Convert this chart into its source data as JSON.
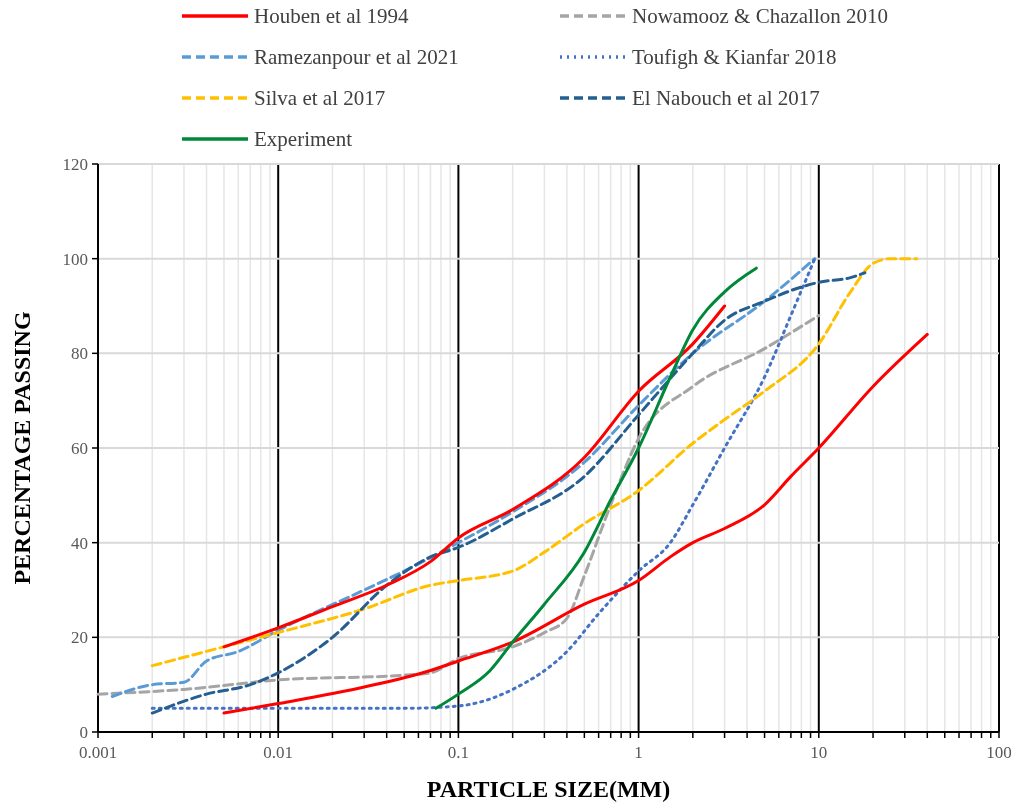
{
  "chart_data": {
    "type": "line",
    "xlabel": "PARTICLE SIZE(MM)",
    "ylabel": "PERCENTAGE PASSING",
    "log": "x",
    "grid": true,
    "legend": "top",
    "marker": "none",
    "xlim": [
      0.001,
      100
    ],
    "ylim": [
      0,
      120
    ],
    "xticks": [
      0.001,
      {
        "value": 0.002,
        "label": null
      },
      {
        "value": 0.003,
        "label": null
      },
      {
        "value": 0.004,
        "label": null
      },
      {
        "value": 0.005,
        "label": null
      },
      {
        "value": 0.006,
        "label": null
      },
      {
        "value": 0.007,
        "label": null
      },
      {
        "value": 0.008,
        "label": null
      },
      {
        "value": 0.009,
        "label": null
      },
      0.01,
      {
        "value": 0.02,
        "label": null
      },
      {
        "value": 0.03,
        "label": null
      },
      {
        "value": 0.04,
        "label": null
      },
      {
        "value": 0.05,
        "label": null
      },
      {
        "value": 0.06,
        "label": null
      },
      {
        "value": 0.07,
        "label": null
      },
      {
        "value": 0.08,
        "label": null
      },
      {
        "value": 0.09,
        "label": null
      },
      0.1,
      {
        "value": 0.2,
        "label": null
      },
      {
        "value": 0.3,
        "label": null
      },
      {
        "value": 0.4,
        "label": null
      },
      {
        "value": 0.5,
        "label": null
      },
      {
        "value": 0.6,
        "label": null
      },
      {
        "value": 0.7,
        "label": null
      },
      {
        "value": 0.8,
        "label": null
      },
      {
        "value": 0.9,
        "label": null
      },
      1,
      {
        "value": 2,
        "label": null
      },
      {
        "value": 3,
        "label": null
      },
      {
        "value": 4,
        "label": null
      },
      {
        "value": 5,
        "label": null
      },
      {
        "value": 6,
        "label": null
      },
      {
        "value": 7,
        "label": null
      },
      {
        "value": 8,
        "label": null
      },
      {
        "value": 9,
        "label": null
      },
      10,
      {
        "value": 20,
        "label": null
      },
      {
        "value": 30,
        "label": null
      },
      {
        "value": 40,
        "label": null
      },
      {
        "value": 50,
        "label": null
      },
      {
        "value": 60,
        "label": null
      },
      {
        "value": 70,
        "label": null
      },
      {
        "value": 80,
        "label": null
      },
      {
        "value": 90,
        "label": null
      },
      100
    ],
    "yticks": [
      0,
      20,
      40,
      60,
      80,
      100,
      120
    ],
    "series": [
      {
        "name": "Houben et al 1994",
        "color": "#ff0000",
        "line_style": "solid",
        "x": [
          0.005,
          0.01,
          0.03,
          0.07,
          0.1,
          0.2,
          0.5,
          1,
          1.5,
          2,
          3,
          5,
          7,
          10,
          20,
          40
        ],
        "values": [
          4,
          6,
          9.5,
          13,
          15,
          19,
          27,
          32,
          37,
          40,
          43,
          48,
          54,
          60,
          73,
          84
        ]
      },
      {
        "color": "#ff0000",
        "line_style": "solid",
        "x": [
          0.005,
          0.01,
          0.02,
          0.04,
          0.07,
          0.1,
          0.2,
          0.5,
          1,
          2,
          3
        ],
        "values": [
          18,
          22,
          26.5,
          31,
          36,
          41,
          47,
          58,
          72,
          82,
          90
        ]
      },
      {
        "name": "Nowamooz & Chazallon 2010",
        "color": "#a5a5a5",
        "line_style": "dashed",
        "x": [
          0.001,
          0.003,
          0.01,
          0.05,
          0.07,
          0.1,
          0.2,
          0.3,
          0.4,
          0.5,
          0.7,
          1,
          2,
          5,
          10
        ],
        "values": [
          8,
          9,
          11,
          12,
          12.5,
          15.5,
          18,
          21,
          24,
          33,
          48,
          62,
          73,
          81,
          88
        ]
      },
      {
        "name": "Ramezanpour et al 2021",
        "color": "#5b9bd5",
        "line_style": "dashed",
        "x": [
          0.0012,
          0.002,
          0.003,
          0.004,
          0.006,
          0.01,
          0.03,
          0.05,
          0.1,
          0.2,
          0.5,
          1,
          2,
          5,
          9.5
        ],
        "values": [
          7.5,
          10,
          10.5,
          15,
          17,
          21.5,
          30,
          34,
          40,
          46.5,
          57,
          69,
          80,
          91,
          100
        ]
      },
      {
        "name": "Toufigh & Kianfar 2018",
        "color": "#4472c4",
        "line_style": "dotted",
        "x": [
          0.002,
          0.01,
          0.05,
          0.1,
          0.2,
          0.4,
          0.6,
          1,
          1.5,
          2,
          3,
          5,
          7,
          9.5
        ],
        "values": [
          5,
          5,
          5,
          5.5,
          9,
          17,
          25,
          34,
          40,
          48,
          60,
          75,
          88,
          100
        ]
      },
      {
        "name": "Silva et al 2017",
        "color": "#ffc000",
        "line_style": "dashed",
        "x": [
          0.002,
          0.005,
          0.01,
          0.03,
          0.07,
          0.1,
          0.2,
          0.3,
          0.5,
          1,
          2,
          3,
          5,
          10,
          15,
          20,
          25,
          35
        ],
        "values": [
          14,
          18,
          21,
          26,
          31,
          32,
          34,
          38,
          44,
          51,
          61,
          66,
          72,
          82,
          93,
          99,
          100,
          100
        ]
      },
      {
        "name": "El Nabouch et al 2017",
        "color": "#255e91",
        "line_style": "dashed",
        "x": [
          0.002,
          0.004,
          0.007,
          0.01,
          0.02,
          0.04,
          0.07,
          0.1,
          0.2,
          0.5,
          1,
          2,
          3,
          5,
          8,
          10,
          15,
          18
        ],
        "values": [
          4,
          8,
          10,
          12.5,
          20,
          31,
          37,
          39,
          45,
          54,
          67,
          80,
          87,
          91,
          94,
          95,
          96,
          97
        ]
      },
      {
        "name": "Experiment",
        "color": "#00883a",
        "line_style": "solid",
        "x": [
          0.075,
          0.1,
          0.15,
          0.2,
          0.3,
          0.5,
          0.7,
          1,
          1.5,
          2,
          3,
          4.5
        ],
        "values": [
          5,
          8,
          13,
          19,
          27,
          38,
          49,
          60,
          75,
          85,
          93,
          98
        ]
      }
    ]
  }
}
